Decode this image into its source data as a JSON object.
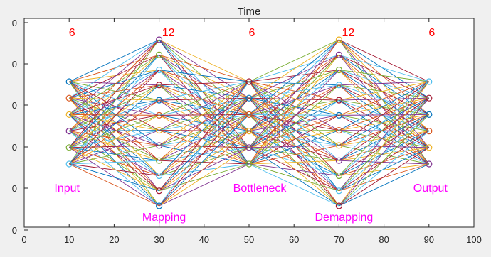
{
  "chart_data": {
    "type": "line",
    "title": "Time",
    "xlabel": "",
    "ylabel": "",
    "xlim": [
      0,
      100
    ],
    "x_ticks": [
      "0",
      "10",
      "20",
      "30",
      "40",
      "50",
      "60",
      "70",
      "80",
      "90",
      "100"
    ],
    "y_ticks_partial": [
      "0",
      "0",
      "0",
      "0",
      "0",
      "0"
    ],
    "grid": false,
    "layers": [
      {
        "name": "Input",
        "x": 10,
        "count": "6",
        "nodes": 6
      },
      {
        "name": "Mapping",
        "x": 30,
        "count": "12",
        "nodes": 12
      },
      {
        "name": "Bottleneck",
        "x": 50,
        "count": "6",
        "nodes": 6
      },
      {
        "name": "Demapping",
        "x": 70,
        "count": "12",
        "nodes": 12
      },
      {
        "name": "Output",
        "x": 90,
        "count": "6",
        "nodes": 6
      }
    ],
    "connections": "fully connected between adjacent layers",
    "colors": {
      "count_text": "#ff0000",
      "layer_label": "#ff00ff",
      "series_palette": [
        "#0072bd",
        "#d95319",
        "#edb120",
        "#7e2f8e",
        "#77ac30",
        "#4dbeee",
        "#a2142f"
      ]
    }
  }
}
